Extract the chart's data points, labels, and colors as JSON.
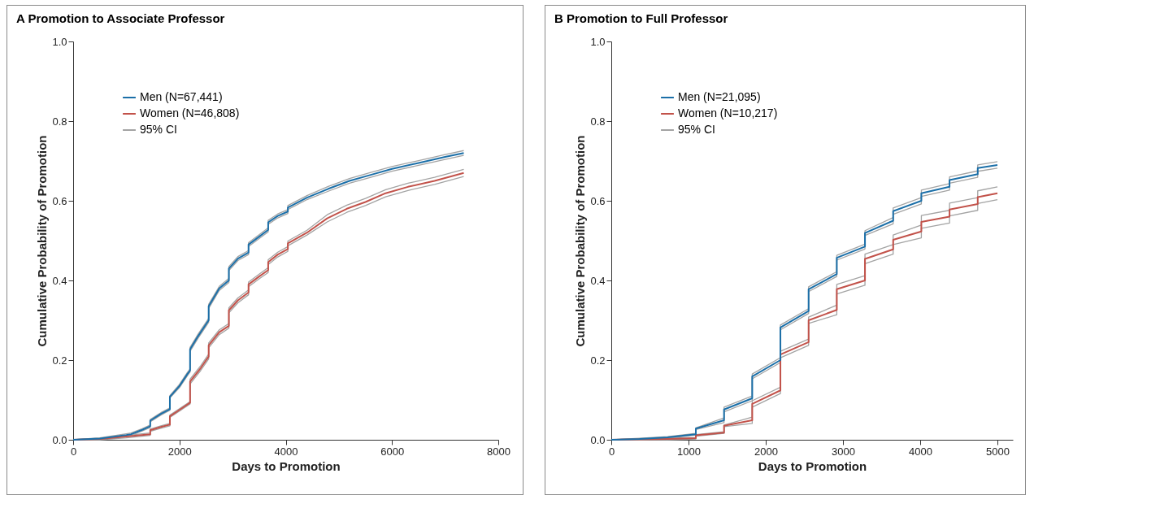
{
  "chart_data": [
    {
      "type": "line",
      "title": "A  Promotion to Associate Professor",
      "xlabel": "Days to Promotion",
      "ylabel": "Cumulative Probability of Promotion",
      "xlim": [
        0,
        8000
      ],
      "xticks": [
        0,
        2000,
        4000,
        6000,
        8000
      ],
      "ylim": [
        0,
        1
      ],
      "yticks": [
        {
          "value": 0,
          "label": "0.0"
        },
        {
          "value": 0.2,
          "label": "0.2"
        },
        {
          "value": 0.4,
          "label": "0.4"
        },
        {
          "value": 0.6,
          "label": "0.6"
        },
        {
          "value": 0.8,
          "label": "0.8"
        },
        {
          "value": 1,
          "label": "1.0"
        }
      ],
      "legend": "top left",
      "series": [
        {
          "name": "Men (N=67,441)",
          "color": "#1b6fa8",
          "x": [
            0,
            500,
            1000,
            1090,
            1300,
            1450,
            1450,
            1650,
            1820,
            1820,
            2000,
            2150,
            2200,
            2200,
            2350,
            2550,
            2550,
            2750,
            2930,
            2930,
            3100,
            3300,
            3300,
            3500,
            3670,
            3670,
            3850,
            4040,
            4040,
            4400,
            4800,
            5200,
            5600,
            6000,
            6500,
            7000,
            7350
          ],
          "values": [
            0,
            0.003,
            0.012,
            0.014,
            0.025,
            0.034,
            0.048,
            0.065,
            0.077,
            0.108,
            0.135,
            0.165,
            0.174,
            0.227,
            0.26,
            0.3,
            0.335,
            0.38,
            0.4,
            0.43,
            0.455,
            0.47,
            0.49,
            0.51,
            0.527,
            0.546,
            0.562,
            0.573,
            0.583,
            0.608,
            0.63,
            0.65,
            0.665,
            0.68,
            0.695,
            0.71,
            0.72
          ]
        },
        {
          "name": "Women (N=46,808)",
          "color": "#c2524a",
          "x": [
            0,
            500,
            1000,
            1450,
            1450,
            1650,
            1820,
            1820,
            2000,
            2200,
            2200,
            2400,
            2550,
            2550,
            2750,
            2930,
            2930,
            3100,
            3300,
            3300,
            3500,
            3670,
            3670,
            3850,
            4040,
            4040,
            4400,
            4780,
            5150,
            5500,
            5880,
            6300,
            6800,
            7350
          ],
          "values": [
            0,
            0.002,
            0.008,
            0.014,
            0.024,
            0.032,
            0.038,
            0.059,
            0.075,
            0.093,
            0.146,
            0.18,
            0.209,
            0.237,
            0.27,
            0.286,
            0.325,
            0.35,
            0.37,
            0.39,
            0.41,
            0.426,
            0.446,
            0.465,
            0.479,
            0.493,
            0.52,
            0.556,
            0.58,
            0.597,
            0.619,
            0.635,
            0.65,
            0.67
          ]
        },
        {
          "name": "95% CI",
          "color": "#a3a3a3",
          "x": [
            0,
            500,
            1000,
            1090,
            1300,
            1450,
            1450,
            1650,
            1820,
            1820,
            2000,
            2150,
            2200,
            2200,
            2350,
            2550,
            2550,
            2750,
            2930,
            2930,
            3100,
            3300,
            3300,
            3500,
            3670,
            3670,
            3850,
            4040,
            4040,
            4400,
            4800,
            5200,
            5600,
            6000,
            6500,
            7000,
            7350
          ],
          "values": [
            0,
            0.001,
            0.009,
            0.011,
            0.022,
            0.031,
            0.045,
            0.062,
            0.074,
            0.105,
            0.131,
            0.161,
            0.17,
            0.222,
            0.255,
            0.295,
            0.33,
            0.375,
            0.395,
            0.425,
            0.45,
            0.465,
            0.485,
            0.505,
            0.522,
            0.541,
            0.557,
            0.568,
            0.578,
            0.603,
            0.624,
            0.644,
            0.659,
            0.674,
            0.689,
            0.704,
            0.714
          ]
        },
        {
          "color": "#a3a3a3",
          "x": [
            0,
            500,
            1000,
            1090,
            1300,
            1450,
            1450,
            1650,
            1820,
            1820,
            2000,
            2150,
            2200,
            2200,
            2350,
            2550,
            2550,
            2750,
            2930,
            2930,
            3100,
            3300,
            3300,
            3500,
            3670,
            3670,
            3850,
            4040,
            4040,
            4400,
            4800,
            5200,
            5600,
            6000,
            6500,
            7000,
            7350
          ],
          "values": [
            0,
            0.005,
            0.015,
            0.017,
            0.028,
            0.037,
            0.051,
            0.068,
            0.08,
            0.111,
            0.139,
            0.169,
            0.178,
            0.232,
            0.265,
            0.305,
            0.34,
            0.385,
            0.405,
            0.435,
            0.46,
            0.475,
            0.495,
            0.515,
            0.532,
            0.551,
            0.567,
            0.578,
            0.588,
            0.613,
            0.636,
            0.656,
            0.671,
            0.686,
            0.701,
            0.716,
            0.726
          ]
        },
        {
          "color": "#a3a3a3",
          "x": [
            0,
            500,
            1000,
            1450,
            1450,
            1650,
            1820,
            1820,
            2000,
            2200,
            2200,
            2400,
            2550,
            2550,
            2750,
            2930,
            2930,
            3100,
            3300,
            3300,
            3500,
            3670,
            3670,
            3850,
            4040,
            4040,
            4400,
            4780,
            5150,
            5500,
            5880,
            6300,
            6800,
            7350
          ],
          "values": [
            0,
            0,
            0.005,
            0.011,
            0.021,
            0.029,
            0.035,
            0.056,
            0.072,
            0.09,
            0.14,
            0.174,
            0.203,
            0.231,
            0.264,
            0.28,
            0.319,
            0.344,
            0.364,
            0.384,
            0.404,
            0.42,
            0.44,
            0.459,
            0.473,
            0.487,
            0.514,
            0.547,
            0.571,
            0.588,
            0.61,
            0.626,
            0.641,
            0.661
          ]
        },
        {
          "color": "#a3a3a3",
          "x": [
            0,
            500,
            1000,
            1450,
            1450,
            1650,
            1820,
            1820,
            2000,
            2200,
            2200,
            2400,
            2550,
            2550,
            2750,
            2930,
            2930,
            3100,
            3300,
            3300,
            3500,
            3670,
            3670,
            3850,
            4040,
            4040,
            4400,
            4780,
            5150,
            5500,
            5880,
            6300,
            6800,
            7350
          ],
          "values": [
            0,
            0.004,
            0.011,
            0.017,
            0.027,
            0.035,
            0.041,
            0.062,
            0.078,
            0.096,
            0.152,
            0.186,
            0.215,
            0.243,
            0.276,
            0.292,
            0.331,
            0.356,
            0.376,
            0.396,
            0.416,
            0.432,
            0.452,
            0.471,
            0.485,
            0.499,
            0.526,
            0.565,
            0.589,
            0.606,
            0.628,
            0.644,
            0.659,
            0.679
          ]
        }
      ]
    },
    {
      "type": "line",
      "title": "B  Promotion to Full Professor",
      "xlabel": "Days to Promotion",
      "ylabel": "Cumulative Probability of Promotion",
      "xlim": [
        0,
        5200
      ],
      "xticks": [
        0,
        1000,
        2000,
        3000,
        4000,
        5000
      ],
      "ylim": [
        0,
        1
      ],
      "yticks": [
        {
          "value": 0,
          "label": "0.0"
        },
        {
          "value": 0.2,
          "label": "0.2"
        },
        {
          "value": 0.4,
          "label": "0.4"
        },
        {
          "value": 0.6,
          "label": "0.6"
        },
        {
          "value": 0.8,
          "label": "0.8"
        },
        {
          "value": 1,
          "label": "1.0"
        }
      ],
      "legend": "top left",
      "series": [
        {
          "name": "Men (N=21,095)",
          "color": "#1b6fa8",
          "x": [
            0,
            365,
            730,
            1095,
            1095,
            1460,
            1460,
            1825,
            1825,
            2190,
            2190,
            2555,
            2555,
            2920,
            2920,
            3285,
            3285,
            3650,
            3650,
            4015,
            4015,
            4380,
            4380,
            4745,
            4745,
            5000
          ],
          "values": [
            0,
            0.002,
            0.006,
            0.014,
            0.028,
            0.049,
            0.076,
            0.104,
            0.159,
            0.2,
            0.282,
            0.323,
            0.378,
            0.416,
            0.457,
            0.485,
            0.519,
            0.55,
            0.574,
            0.6,
            0.619,
            0.635,
            0.652,
            0.667,
            0.682,
            0.69
          ]
        },
        {
          "name": "Women (N=10,217)",
          "color": "#c2524a",
          "x": [
            0,
            365,
            730,
            1095,
            1095,
            1460,
            1460,
            1825,
            1825,
            2190,
            2190,
            2555,
            2555,
            2920,
            2920,
            3285,
            3285,
            3650,
            3650,
            4015,
            4015,
            4380,
            4380,
            4745,
            4745,
            5000
          ],
          "values": [
            0,
            0.001,
            0.002,
            0.004,
            0.011,
            0.018,
            0.035,
            0.049,
            0.09,
            0.124,
            0.214,
            0.245,
            0.3,
            0.326,
            0.378,
            0.4,
            0.454,
            0.478,
            0.502,
            0.523,
            0.547,
            0.56,
            0.578,
            0.592,
            0.609,
            0.619
          ]
        },
        {
          "name": "95% CI",
          "color": "#a3a3a3",
          "x": [
            0,
            365,
            730,
            1095,
            1095,
            1460,
            1460,
            1825,
            1825,
            2190,
            2190,
            2555,
            2555,
            2920,
            2920,
            3285,
            3285,
            3650,
            3650,
            4015,
            4015,
            4380,
            4380,
            4745,
            4745,
            5000
          ],
          "values": [
            0,
            0,
            0.004,
            0.012,
            0.026,
            0.043,
            0.07,
            0.098,
            0.153,
            0.194,
            0.276,
            0.317,
            0.372,
            0.41,
            0.451,
            0.479,
            0.513,
            0.542,
            0.566,
            0.592,
            0.611,
            0.627,
            0.644,
            0.659,
            0.674,
            0.682
          ]
        },
        {
          "color": "#a3a3a3",
          "x": [
            0,
            365,
            730,
            1095,
            1095,
            1460,
            1460,
            1825,
            1825,
            2190,
            2190,
            2555,
            2555,
            2920,
            2920,
            3285,
            3285,
            3650,
            3650,
            4015,
            4015,
            4380,
            4380,
            4745,
            4745,
            5000
          ],
          "values": [
            0,
            0.004,
            0.008,
            0.016,
            0.03,
            0.055,
            0.082,
            0.11,
            0.165,
            0.206,
            0.288,
            0.329,
            0.384,
            0.422,
            0.463,
            0.491,
            0.525,
            0.558,
            0.582,
            0.608,
            0.627,
            0.643,
            0.66,
            0.675,
            0.69,
            0.698
          ]
        },
        {
          "color": "#a3a3a3",
          "x": [
            0,
            365,
            730,
            1095,
            1095,
            1460,
            1460,
            1825,
            1825,
            2190,
            2190,
            2555,
            2555,
            2920,
            2920,
            3285,
            3285,
            3650,
            3650,
            4015,
            4015,
            4380,
            4380,
            4745,
            4745,
            5000
          ],
          "values": [
            0,
            0,
            0,
            0.002,
            0.009,
            0.016,
            0.033,
            0.041,
            0.082,
            0.116,
            0.206,
            0.237,
            0.292,
            0.314,
            0.366,
            0.388,
            0.442,
            0.466,
            0.49,
            0.507,
            0.531,
            0.544,
            0.562,
            0.576,
            0.593,
            0.603
          ]
        },
        {
          "color": "#a3a3a3",
          "x": [
            0,
            365,
            730,
            1095,
            1095,
            1460,
            1460,
            1825,
            1825,
            2190,
            2190,
            2555,
            2555,
            2920,
            2920,
            3285,
            3285,
            3650,
            3650,
            4015,
            4015,
            4380,
            4380,
            4745,
            4745,
            5000
          ],
          "values": [
            0,
            0.003,
            0.004,
            0.006,
            0.013,
            0.02,
            0.037,
            0.057,
            0.098,
            0.132,
            0.222,
            0.253,
            0.308,
            0.338,
            0.39,
            0.412,
            0.466,
            0.49,
            0.514,
            0.539,
            0.563,
            0.576,
            0.594,
            0.608,
            0.625,
            0.635
          ]
        }
      ]
    }
  ]
}
